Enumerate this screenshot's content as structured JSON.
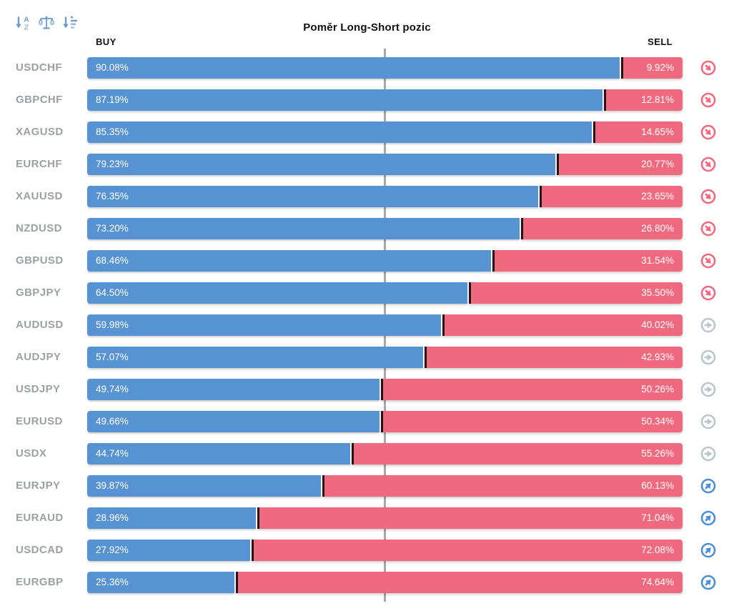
{
  "title": "Poměr Long-Short pozic",
  "columns": {
    "buy": "BUY",
    "sell": "SELL"
  },
  "toolbar": {
    "icons": [
      {
        "name": "sort-alphabetical-icon"
      },
      {
        "name": "balance-scale-icon"
      },
      {
        "name": "sort-amount-icon"
      }
    ]
  },
  "colors": {
    "buy_bar": "#5793d3",
    "sell_bar": "#ef6a7e",
    "divider": "#241519",
    "center_line": "#a7a7a7",
    "pair_label": "#9ca0a4",
    "signal_down": "#f0697e",
    "signal_neutral": "#b9c6d2",
    "signal_up": "#4a8fd4",
    "toolbar_icon": "#6d9bca",
    "toolbar_icon_light": "#a9c5e1"
  },
  "rows": [
    {
      "pair": "USDCHF",
      "buy": 90.08,
      "sell": 9.92,
      "buy_label": "90.08%",
      "sell_label": "9.92%",
      "signal": "down"
    },
    {
      "pair": "GBPCHF",
      "buy": 87.19,
      "sell": 12.81,
      "buy_label": "87.19%",
      "sell_label": "12.81%",
      "signal": "down"
    },
    {
      "pair": "XAGUSD",
      "buy": 85.35,
      "sell": 14.65,
      "buy_label": "85.35%",
      "sell_label": "14.65%",
      "signal": "down"
    },
    {
      "pair": "EURCHF",
      "buy": 79.23,
      "sell": 20.77,
      "buy_label": "79.23%",
      "sell_label": "20.77%",
      "signal": "down"
    },
    {
      "pair": "XAUUSD",
      "buy": 76.35,
      "sell": 23.65,
      "buy_label": "76.35%",
      "sell_label": "23.65%",
      "signal": "down"
    },
    {
      "pair": "NZDUSD",
      "buy": 73.2,
      "sell": 26.8,
      "buy_label": "73.20%",
      "sell_label": "26.80%",
      "signal": "down"
    },
    {
      "pair": "GBPUSD",
      "buy": 68.46,
      "sell": 31.54,
      "buy_label": "68.46%",
      "sell_label": "31.54%",
      "signal": "down"
    },
    {
      "pair": "GBPJPY",
      "buy": 64.5,
      "sell": 35.5,
      "buy_label": "64.50%",
      "sell_label": "35.50%",
      "signal": "down"
    },
    {
      "pair": "AUDUSD",
      "buy": 59.98,
      "sell": 40.02,
      "buy_label": "59.98%",
      "sell_label": "40.02%",
      "signal": "neutral"
    },
    {
      "pair": "AUDJPY",
      "buy": 57.07,
      "sell": 42.93,
      "buy_label": "57.07%",
      "sell_label": "42.93%",
      "signal": "neutral"
    },
    {
      "pair": "USDJPY",
      "buy": 49.74,
      "sell": 50.26,
      "buy_label": "49.74%",
      "sell_label": "50.26%",
      "signal": "neutral"
    },
    {
      "pair": "EURUSD",
      "buy": 49.66,
      "sell": 50.34,
      "buy_label": "49.66%",
      "sell_label": "50.34%",
      "signal": "neutral"
    },
    {
      "pair": "USDX",
      "buy": 44.74,
      "sell": 55.26,
      "buy_label": "44.74%",
      "sell_label": "55.26%",
      "signal": "neutral"
    },
    {
      "pair": "EURJPY",
      "buy": 39.87,
      "sell": 60.13,
      "buy_label": "39.87%",
      "sell_label": "60.13%",
      "signal": "up"
    },
    {
      "pair": "EURAUD",
      "buy": 28.96,
      "sell": 71.04,
      "buy_label": "28.96%",
      "sell_label": "71.04%",
      "signal": "up"
    },
    {
      "pair": "USDCAD",
      "buy": 27.92,
      "sell": 72.08,
      "buy_label": "27.92%",
      "sell_label": "72.08%",
      "signal": "up"
    },
    {
      "pair": "EURGBP",
      "buy": 25.36,
      "sell": 74.64,
      "buy_label": "25.36%",
      "sell_label": "74.64%",
      "signal": "up"
    }
  ],
  "chart_data": {
    "type": "bar",
    "orientation": "horizontal",
    "stacked": true,
    "title": "Poměr Long-Short pozic",
    "categories": [
      "USDCHF",
      "GBPCHF",
      "XAGUSD",
      "EURCHF",
      "XAUUSD",
      "NZDUSD",
      "GBPUSD",
      "GBPJPY",
      "AUDUSD",
      "AUDJPY",
      "USDJPY",
      "EURUSD",
      "USDX",
      "EURJPY",
      "EURAUD",
      "USDCAD",
      "EURGBP"
    ],
    "series": [
      {
        "name": "BUY",
        "color": "#5793d3",
        "values": [
          90.08,
          87.19,
          85.35,
          79.23,
          76.35,
          73.2,
          68.46,
          64.5,
          59.98,
          57.07,
          49.74,
          49.66,
          44.74,
          39.87,
          28.96,
          27.92,
          25.36
        ]
      },
      {
        "name": "SELL",
        "color": "#ef6a7e",
        "values": [
          9.92,
          12.81,
          14.65,
          20.77,
          23.65,
          26.8,
          31.54,
          35.5,
          40.02,
          42.93,
          50.26,
          50.34,
          55.26,
          60.13,
          71.04,
          72.08,
          74.64
        ]
      }
    ],
    "value_suffix": "%",
    "xlim": [
      0,
      100
    ],
    "reference_line_at": 50,
    "value_labels": "inside bars (buy left-aligned, sell right-aligned)",
    "legend_position": "column headers: BUY top-left, SELL top-right",
    "row_signals": [
      "down",
      "down",
      "down",
      "down",
      "down",
      "down",
      "down",
      "down",
      "neutral",
      "neutral",
      "neutral",
      "neutral",
      "neutral",
      "up",
      "up",
      "up",
      "up"
    ]
  }
}
